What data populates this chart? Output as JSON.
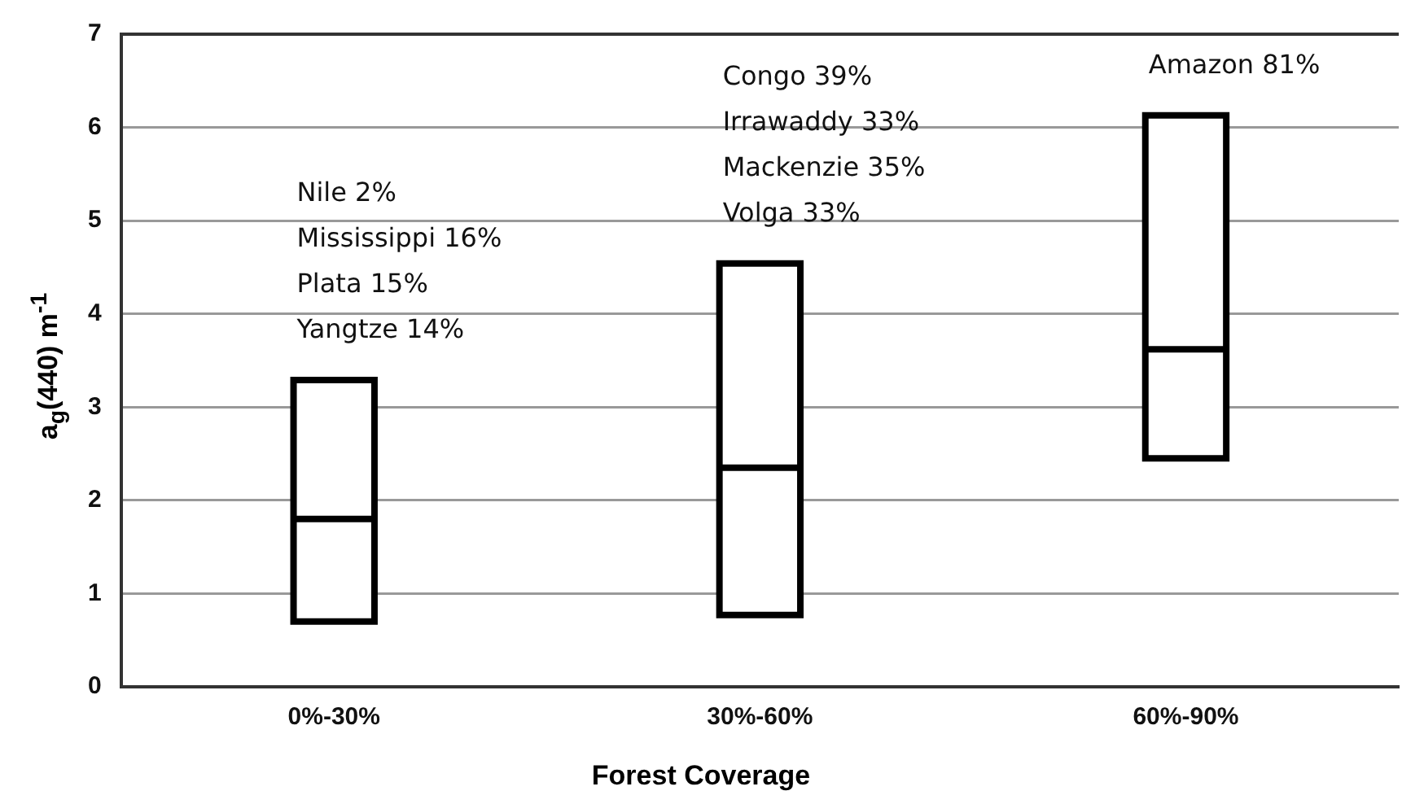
{
  "chart_data": {
    "type": "box",
    "xlabel": "Forest Coverage",
    "ylabel": "a$_{g}$(440) m$^{-1}$",
    "categories": [
      "0%-30%",
      "30%-60%",
      "60%-90%"
    ],
    "boxes": [
      {
        "low": 0.7,
        "q1": 0.7,
        "median": 1.8,
        "q3": 3.29,
        "high": 3.29
      },
      {
        "low": 0.77,
        "q1": 0.77,
        "median": 2.35,
        "q3": 4.54,
        "high": 4.54
      },
      {
        "low": 2.45,
        "q1": 2.45,
        "median": 3.62,
        "q3": 6.13,
        "high": 6.13
      }
    ],
    "color": "#000000",
    "ylim": [
      0,
      7
    ],
    "yticks": [
      0,
      1,
      2,
      3,
      4,
      5,
      6,
      7
    ],
    "grid": "y",
    "annotations": [
      "Nile 2%\nMississippi 16%\nPlata 15%\nYangtze 14%",
      "Congo 39%\nIrrawaddy 33%\nMackenzie 35%\nVolga 33%",
      "Amazon 81%"
    ]
  }
}
